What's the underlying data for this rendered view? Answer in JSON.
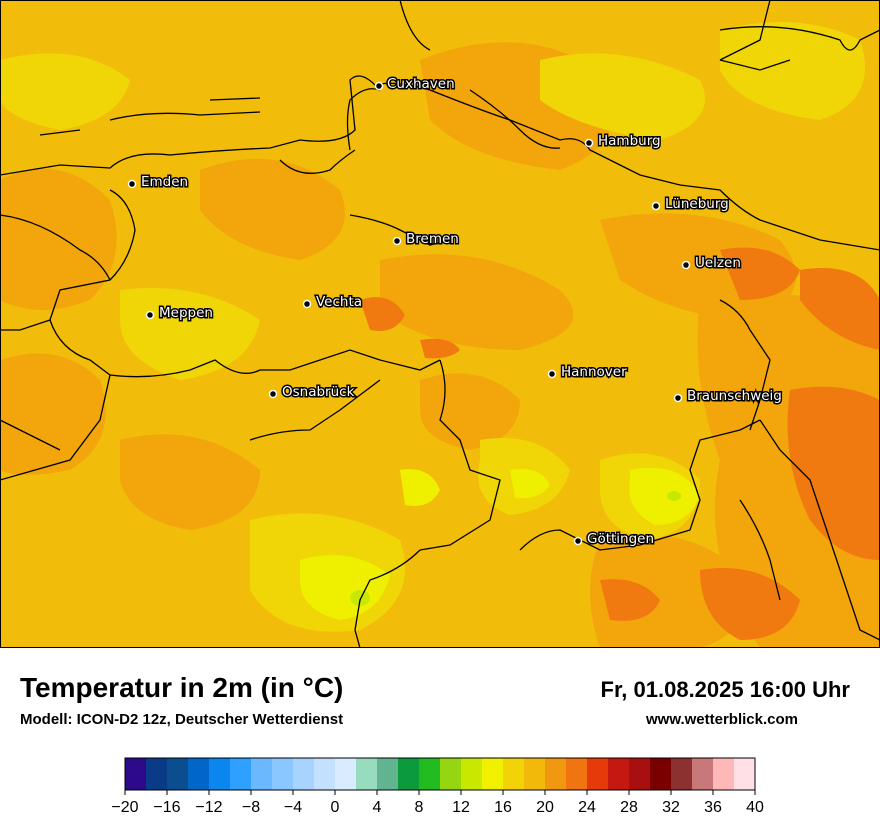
{
  "header": {
    "title": "Temperatur in 2m (in °C)",
    "model": "Modell: ICON-D2 12z, Deutscher Wetterdienst",
    "datetime": "Fr, 01.08.2025 16:00 Uhr",
    "website": "www.wetterblick.com"
  },
  "map": {
    "cities": [
      {
        "name": "Cuxhaven"
      },
      {
        "name": "Hamburg"
      },
      {
        "name": "Emden"
      },
      {
        "name": "Lüneburg"
      },
      {
        "name": "Bremen"
      },
      {
        "name": "Uelzen"
      },
      {
        "name": "Meppen"
      },
      {
        "name": "Vechta"
      },
      {
        "name": "Hannover"
      },
      {
        "name": "Osnabrück"
      },
      {
        "name": "Braunschweig"
      },
      {
        "name": "Göttingen"
      }
    ]
  },
  "legend": {
    "tick_labels": [
      "−20",
      "−16",
      "−12",
      "−8",
      "−4",
      "0",
      "4",
      "8",
      "12",
      "16",
      "20",
      "24",
      "28",
      "32",
      "36",
      "40"
    ],
    "colors": [
      "#2c0a8a",
      "#093b88",
      "#0a4e8f",
      "#0066c8",
      "#0a86ee",
      "#2ea0ff",
      "#6bb8ff",
      "#8ac6ff",
      "#a8d3ff",
      "#c4e0ff",
      "#d9ecff",
      "#98dcc0",
      "#62b490",
      "#0b9a3c",
      "#22bb20",
      "#96d610",
      "#c8e800",
      "#f0f000",
      "#f2d308",
      "#f2b80a",
      "#f29810",
      "#f07410",
      "#e63a0a",
      "#c41810",
      "#a81010",
      "#7a0000",
      "#8c3030",
      "#c87878",
      "#ffb8b8",
      "#ffe0e6"
    ]
  }
}
